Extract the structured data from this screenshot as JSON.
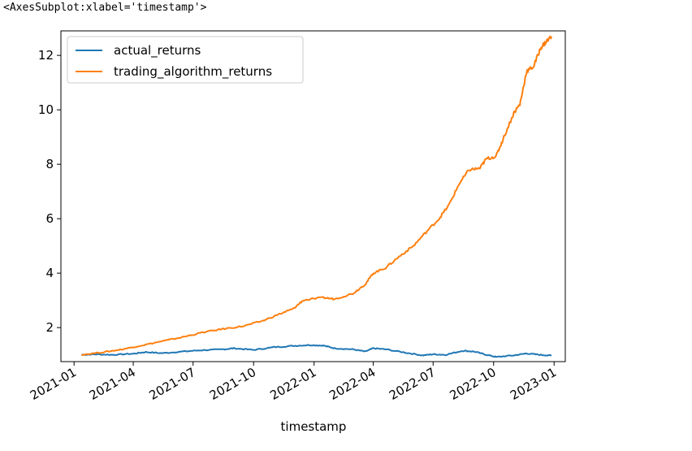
{
  "output_repr": "<AxesSubplot:xlabel='timestamp'>",
  "chart_data": {
    "type": "line",
    "xlabel": "timestamp",
    "ylabel": "",
    "title": "",
    "x_ticks": [
      "2021-01",
      "2021-04",
      "2021-07",
      "2021-10",
      "2022-01",
      "2022-04",
      "2022-07",
      "2022-10",
      "2023-01"
    ],
    "y_ticks": [
      2,
      4,
      6,
      8,
      10,
      12
    ],
    "ylim": [
      0.75,
      12.9
    ],
    "xlim": [
      "2020-12-12",
      "2023-01-18"
    ],
    "grid": false,
    "legend_position": "upper-left",
    "series": [
      {
        "name": "actual_returns",
        "color": "#1f77b4",
        "points": [
          [
            "2021-01-12",
            1.0
          ],
          [
            "2021-02-01",
            1.02
          ],
          [
            "2021-03-01",
            1.0
          ],
          [
            "2021-04-01",
            1.04
          ],
          [
            "2021-04-20",
            1.1
          ],
          [
            "2021-05-15",
            1.06
          ],
          [
            "2021-06-15",
            1.12
          ],
          [
            "2021-07-15",
            1.17
          ],
          [
            "2021-08-15",
            1.2
          ],
          [
            "2021-09-01",
            1.24
          ],
          [
            "2021-10-01",
            1.18
          ],
          [
            "2021-11-01",
            1.28
          ],
          [
            "2021-12-01",
            1.33
          ],
          [
            "2021-12-25",
            1.36
          ],
          [
            "2022-01-15",
            1.34
          ],
          [
            "2022-02-01",
            1.24
          ],
          [
            "2022-03-01",
            1.2
          ],
          [
            "2022-03-20",
            1.12
          ],
          [
            "2022-04-01",
            1.24
          ],
          [
            "2022-04-20",
            1.2
          ],
          [
            "2022-05-20",
            1.08
          ],
          [
            "2022-06-15",
            0.98
          ],
          [
            "2022-07-01",
            1.02
          ],
          [
            "2022-07-20",
            1.0
          ],
          [
            "2022-08-15",
            1.15
          ],
          [
            "2022-09-01",
            1.12
          ],
          [
            "2022-09-20",
            1.0
          ],
          [
            "2022-10-05",
            0.92
          ],
          [
            "2022-11-01",
            0.98
          ],
          [
            "2022-11-20",
            1.05
          ],
          [
            "2022-12-10",
            1.0
          ],
          [
            "2022-12-28",
            0.97
          ]
        ]
      },
      {
        "name": "trading_algorithm_returns",
        "color": "#ff7f0e",
        "points": [
          [
            "2021-01-12",
            1.0
          ],
          [
            "2021-02-15",
            1.1
          ],
          [
            "2021-03-15",
            1.2
          ],
          [
            "2021-04-15",
            1.35
          ],
          [
            "2021-05-15",
            1.5
          ],
          [
            "2021-06-15",
            1.65
          ],
          [
            "2021-07-15",
            1.82
          ],
          [
            "2021-08-15",
            1.95
          ],
          [
            "2021-09-15",
            2.05
          ],
          [
            "2021-10-15",
            2.25
          ],
          [
            "2021-11-15",
            2.55
          ],
          [
            "2021-12-01",
            2.7
          ],
          [
            "2021-12-15",
            3.0
          ],
          [
            "2022-01-15",
            3.1
          ],
          [
            "2022-02-01",
            3.05
          ],
          [
            "2022-03-01",
            3.25
          ],
          [
            "2022-03-20",
            3.6
          ],
          [
            "2022-04-01",
            4.0
          ],
          [
            "2022-04-20",
            4.2
          ],
          [
            "2022-05-10",
            4.6
          ],
          [
            "2022-06-01",
            5.0
          ],
          [
            "2022-06-20",
            5.5
          ],
          [
            "2022-07-10",
            6.0
          ],
          [
            "2022-07-25",
            6.5
          ],
          [
            "2022-08-10",
            7.3
          ],
          [
            "2022-08-25",
            7.8
          ],
          [
            "2022-09-10",
            7.85
          ],
          [
            "2022-09-20",
            8.2
          ],
          [
            "2022-10-05",
            8.3
          ],
          [
            "2022-10-15",
            8.9
          ],
          [
            "2022-11-01",
            9.9
          ],
          [
            "2022-11-10",
            10.2
          ],
          [
            "2022-11-20",
            11.4
          ],
          [
            "2022-12-01",
            11.6
          ],
          [
            "2022-12-12",
            12.3
          ],
          [
            "2022-12-20",
            12.5
          ],
          [
            "2022-12-28",
            12.7
          ]
        ]
      }
    ]
  }
}
